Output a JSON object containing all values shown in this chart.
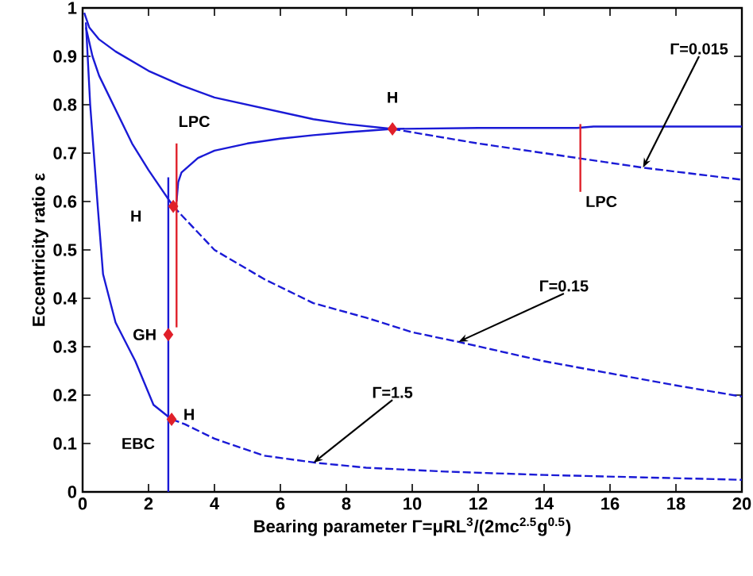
{
  "chart_data": {
    "type": "line",
    "xlabel": "Bearing parameter Γ=μRL$^{3}$/(2mc$^{2.5}$g$^{0.5}$)",
    "ylabel": "Eccentricity ratio ε",
    "xlim": [
      0,
      20
    ],
    "ylim": [
      0,
      1
    ],
    "xticks": [
      0,
      2,
      4,
      6,
      8,
      10,
      12,
      14,
      16,
      18,
      20
    ],
    "yticks": [
      0,
      0.1,
      0.2,
      0.3,
      0.4,
      0.5,
      0.6,
      0.7,
      0.8,
      0.9,
      1
    ],
    "series": [
      {
        "color": "#1a1ad6",
        "line_style": "solid",
        "x": [
          0.05,
          0.2,
          0.5,
          1,
          2,
          3,
          4,
          5,
          6,
          7,
          8,
          9.4
        ],
        "values": [
          0.99,
          0.96,
          0.935,
          0.91,
          0.87,
          0.84,
          0.815,
          0.8,
          0.785,
          0.77,
          0.76,
          0.75
        ]
      },
      {
        "color": "#1a1ad6",
        "line_style": "solid",
        "x": [
          2.85,
          2.9,
          3,
          3.5,
          4,
          5,
          6,
          7,
          8,
          9.4
        ],
        "values": [
          0.6,
          0.64,
          0.66,
          0.69,
          0.705,
          0.72,
          0.73,
          0.737,
          0.743,
          0.75
        ]
      },
      {
        "color": "#1a1ad6",
        "line_style": "solid",
        "x": [
          9.4,
          12,
          15,
          15.5,
          20
        ],
        "values": [
          0.75,
          0.752,
          0.752,
          0.755,
          0.755
        ]
      },
      {
        "color": "#1a1ad6",
        "line_style": "dashed",
        "x": [
          9.4,
          12,
          15,
          17,
          20
        ],
        "values": [
          0.75,
          0.72,
          0.69,
          0.67,
          0.645
        ]
      },
      {
        "color": "#1a1ad6",
        "line_style": "solid",
        "x": [
          0.1,
          0.3,
          0.5,
          1,
          1.5,
          2,
          2.75
        ],
        "values": [
          0.96,
          0.9,
          0.86,
          0.79,
          0.72,
          0.665,
          0.59
        ]
      },
      {
        "color": "#1a1ad6",
        "line_style": "dashed",
        "x": [
          2.75,
          4,
          5.5,
          7,
          8.6,
          10,
          11.4,
          14,
          16,
          18,
          20
        ],
        "values": [
          0.59,
          0.5,
          0.44,
          0.39,
          0.36,
          0.33,
          0.31,
          0.27,
          0.245,
          0.22,
          0.197
        ]
      },
      {
        "color": "#1a1ad6",
        "line_style": "solid",
        "x": [
          0.1,
          0.23,
          0.47,
          0.62,
          1,
          1.6,
          2.15,
          2.7
        ],
        "values": [
          0.97,
          0.8,
          0.58,
          0.45,
          0.35,
          0.27,
          0.18,
          0.15
        ]
      },
      {
        "color": "#1a1ad6",
        "line_style": "dashed",
        "x": [
          2.7,
          3.1,
          4,
          5.5,
          7.1,
          8.6,
          11,
          14,
          17,
          20
        ],
        "values": [
          0.15,
          0.14,
          0.11,
          0.075,
          0.06,
          0.05,
          0.042,
          0.035,
          0.03,
          0.025
        ]
      },
      {
        "color": "#1a1ad6",
        "line_style": "solid",
        "x": [
          2.6,
          2.6
        ],
        "values": [
          0,
          0.65
        ]
      },
      {
        "color": "#e0202a",
        "line_style": "solid",
        "x": [
          2.85,
          2.85
        ],
        "values": [
          0.34,
          0.72
        ]
      },
      {
        "color": "#e0202a",
        "line_style": "solid",
        "x": [
          15.1,
          15.1
        ],
        "values": [
          0.62,
          0.76
        ]
      },
      {
        "type": "scatter",
        "marker": "diamond",
        "color": "#e0202a",
        "x": [
          2.75,
          2.6,
          2.7,
          9.4
        ],
        "values": [
          0.59,
          0.325,
          0.15,
          0.75
        ]
      }
    ],
    "annotations": [
      {
        "text": "LPC",
        "x": 2.85,
        "y": 0.72
      },
      {
        "text": "H",
        "x": 2.75,
        "y": 0.59
      },
      {
        "text": "GH",
        "x": 2.6,
        "y": 0.325
      },
      {
        "text": "EBC",
        "x": 2.55,
        "y": 0.1
      },
      {
        "text": "H",
        "x": 2.7,
        "y": 0.15
      },
      {
        "text": "H",
        "x": 9.4,
        "y": 0.75
      },
      {
        "text": "LPC",
        "x": 15.1,
        "y": 0.62
      },
      {
        "text": "Γ=0.015",
        "x": 17,
        "y": 0.67
      },
      {
        "text": "Γ=0.15",
        "x": 11.4,
        "y": 0.31
      },
      {
        "text": "Γ=1.5",
        "x": 7.0,
        "y": 0.06
      }
    ]
  }
}
